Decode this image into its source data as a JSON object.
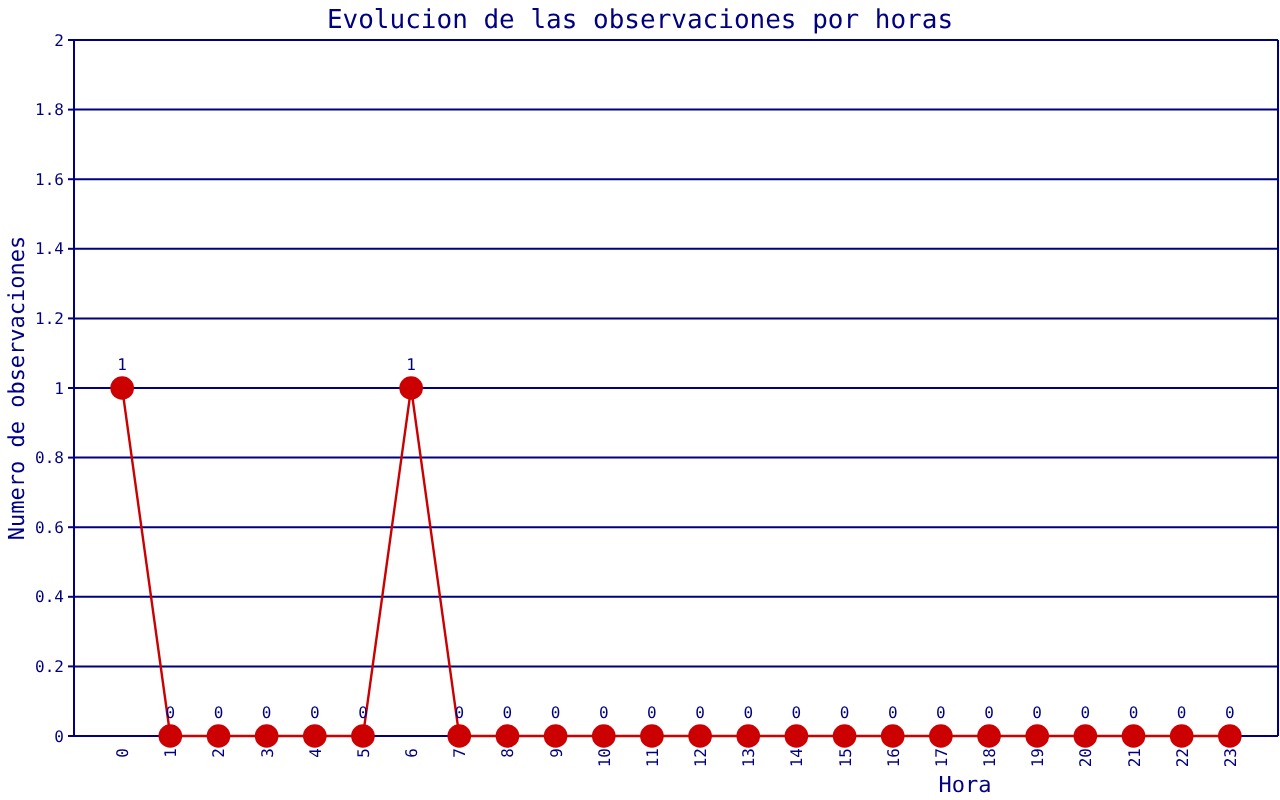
{
  "chart_data": {
    "type": "line",
    "title": "Evolucion de las observaciones por horas",
    "xlabel": "Hora",
    "ylabel": "Numero de observaciones",
    "categories": [
      "0",
      "1",
      "2",
      "3",
      "4",
      "5",
      "6",
      "7",
      "8",
      "9",
      "10",
      "11",
      "12",
      "13",
      "14",
      "15",
      "16",
      "17",
      "18",
      "19",
      "20",
      "21",
      "22",
      "23"
    ],
    "series": [
      {
        "color": "#cc0000",
        "values": [
          1,
          0,
          0,
          0,
          0,
          0,
          1,
          0,
          0,
          0,
          0,
          0,
          0,
          0,
          0,
          0,
          0,
          0,
          0,
          0,
          0,
          0,
          0,
          0
        ]
      }
    ],
    "ylim": [
      0,
      2
    ],
    "yticks": [
      0,
      0.2,
      0.4,
      0.6,
      0.8,
      1,
      1.2,
      1.4,
      1.6,
      1.8,
      2
    ],
    "grid": "y",
    "marker": "circle",
    "data_labels": true
  }
}
